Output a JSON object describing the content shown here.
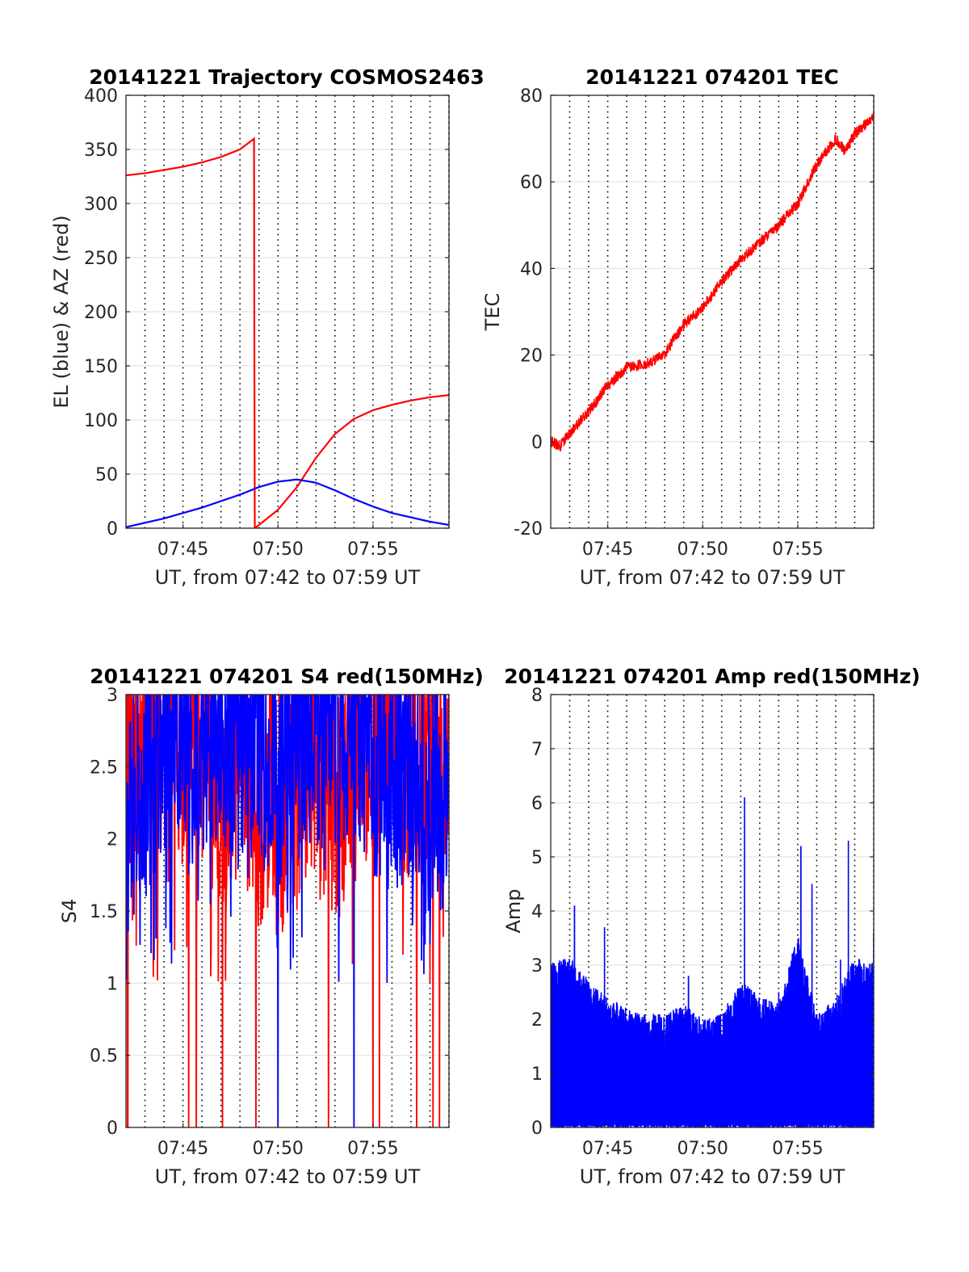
{
  "chart_data": [
    {
      "id": "trajectory",
      "type": "line",
      "title": "20141221 Trajectory COSMOS2463",
      "xlabel": "UT, from 07:42 to 07:59 UT",
      "ylabel": "EL (blue) & AZ (red)",
      "xlim": [
        "07:42",
        "07:59"
      ],
      "xticks": [
        "07:45",
        "07:50",
        "07:55"
      ],
      "ylim": [
        0,
        400
      ],
      "yticks": [
        "0",
        "50",
        "100",
        "150",
        "200",
        "250",
        "300",
        "350",
        "400"
      ],
      "grid": true,
      "series": [
        {
          "color": "#ff0000",
          "points": [
            [
              "07:42:00",
              326
            ],
            [
              "07:43:00",
              328
            ],
            [
              "07:44:00",
              331
            ],
            [
              "07:45:00",
              334
            ],
            [
              "07:46:00",
              338
            ],
            [
              "07:47:00",
              343
            ],
            [
              "07:48:00",
              350
            ],
            [
              "07:48:45",
              360
            ],
            [
              "07:48:46",
              0
            ],
            [
              "07:49:00",
              3
            ],
            [
              "07:50:00",
              17
            ],
            [
              "07:51:00",
              38
            ],
            [
              "07:52:00",
              65
            ],
            [
              "07:53:00",
              87
            ],
            [
              "07:54:00",
              101
            ],
            [
              "07:55:00",
              109
            ],
            [
              "07:56:00",
              114
            ],
            [
              "07:57:00",
              118
            ],
            [
              "07:58:00",
              121
            ],
            [
              "07:59:00",
              123
            ]
          ]
        },
        {
          "color": "#0000ff",
          "points": [
            [
              "07:42:00",
              1
            ],
            [
              "07:43:00",
              5
            ],
            [
              "07:44:00",
              9
            ],
            [
              "07:45:00",
              14
            ],
            [
              "07:46:00",
              19
            ],
            [
              "07:47:00",
              25
            ],
            [
              "07:48:00",
              31
            ],
            [
              "07:49:00",
              38
            ],
            [
              "07:50:00",
              43
            ],
            [
              "07:51:00",
              45
            ],
            [
              "07:52:00",
              42
            ],
            [
              "07:53:00",
              35
            ],
            [
              "07:54:00",
              27
            ],
            [
              "07:55:00",
              20
            ],
            [
              "07:56:00",
              14
            ],
            [
              "07:57:00",
              10
            ],
            [
              "07:58:00",
              6
            ],
            [
              "07:59:00",
              3
            ]
          ]
        }
      ]
    },
    {
      "id": "tec",
      "type": "line",
      "title": "20141221 074201 TEC",
      "xlabel": "UT, from 07:42 to 07:59 UT",
      "ylabel": "TEC",
      "xlim": [
        "07:42",
        "07:59"
      ],
      "xticks": [
        "07:45",
        "07:50",
        "07:55"
      ],
      "ylim": [
        -20,
        80
      ],
      "yticks": [
        "-20",
        "0",
        "20",
        "40",
        "60",
        "80"
      ],
      "grid": true,
      "series": [
        {
          "color": "#ff0000",
          "points": [
            [
              "07:42:00",
              0
            ],
            [
              "07:42:30",
              -1
            ],
            [
              "07:43:00",
              2
            ],
            [
              "07:44:00",
              7
            ],
            [
              "07:45:00",
              13
            ],
            [
              "07:46:00",
              17
            ],
            [
              "07:47:00",
              18
            ],
            [
              "07:48:00",
              20
            ],
            [
              "07:48:30",
              24
            ],
            [
              "07:49:00",
              27
            ],
            [
              "07:50:00",
              31
            ],
            [
              "07:51:00",
              37
            ],
            [
              "07:52:00",
              42
            ],
            [
              "07:53:00",
              46
            ],
            [
              "07:54:00",
              50
            ],
            [
              "07:55:00",
              55
            ],
            [
              "07:56:00",
              64
            ],
            [
              "07:57:00",
              70
            ],
            [
              "07:57:30",
              67
            ],
            [
              "07:58:00",
              71
            ],
            [
              "07:59:00",
              75
            ]
          ]
        }
      ]
    },
    {
      "id": "s4",
      "type": "line",
      "title": "20141221 074201 S4 red(150MHz)",
      "xlabel": "UT, from 07:42 to 07:59 UT",
      "ylabel": "S4",
      "xlim": [
        "07:42",
        "07:59"
      ],
      "xticks": [
        "07:45",
        "07:50",
        "07:55"
      ],
      "ylim": [
        0,
        3
      ],
      "yticks": [
        "0",
        "0.5",
        "1",
        "1.5",
        "2",
        "2.5",
        "3"
      ],
      "grid": true,
      "series": [
        {
          "color": "#ff0000",
          "points": [
            [
              "07:42:00",
              2.5
            ],
            [
              "07:43:00",
              2.3
            ],
            [
              "07:44:00",
              2.6
            ],
            [
              "07:45:00",
              2.2
            ],
            [
              "07:46:00",
              2.5
            ],
            [
              "07:47:00",
              2.1
            ],
            [
              "07:48:00",
              2.4
            ],
            [
              "07:49:00",
              2.0
            ],
            [
              "07:50:00",
              1.8
            ],
            [
              "07:51:00",
              2.2
            ],
            [
              "07:52:00",
              2.4
            ],
            [
              "07:53:00",
              2.0
            ],
            [
              "07:54:00",
              2.3
            ],
            [
              "07:55:00",
              2.5
            ],
            [
              "07:56:00",
              2.6
            ],
            [
              "07:57:00",
              2.3
            ],
            [
              "07:58:00",
              2.5
            ],
            [
              "07:59:00",
              2.2
            ]
          ],
          "dropouts": [
            "07:42:05",
            "07:42:06",
            "07:45:18",
            "07:45:42",
            "07:47:05",
            "07:48:50",
            "07:52:40",
            "07:55:00",
            "07:55:20",
            "07:57:18",
            "07:58:10",
            "07:58:30"
          ]
        },
        {
          "color": "#0000ff",
          "points": [
            [
              "07:42:00",
              1.8
            ],
            [
              "07:43:00",
              2.2
            ],
            [
              "07:44:00",
              2.5
            ],
            [
              "07:45:00",
              2.4
            ],
            [
              "07:46:00",
              2.3
            ],
            [
              "07:47:00",
              2.6
            ],
            [
              "07:48:00",
              2.4
            ],
            [
              "07:49:00",
              2.5
            ],
            [
              "07:50:00",
              2.2
            ],
            [
              "07:51:00",
              2.4
            ],
            [
              "07:52:00",
              2.6
            ],
            [
              "07:53:00",
              2.5
            ],
            [
              "07:54:00",
              2.7
            ],
            [
              "07:55:00",
              2.3
            ],
            [
              "07:56:00",
              2.4
            ],
            [
              "07:57:00",
              2.0
            ],
            [
              "07:58:00",
              1.8
            ],
            [
              "07:59:00",
              2.2
            ]
          ],
          "dropouts": [
            "07:50:00",
            "07:54:00"
          ]
        }
      ]
    },
    {
      "id": "amp",
      "type": "line",
      "title": "20141221 074201 Amp red(150MHz)",
      "xlabel": "UT, from 07:42 to 07:59 UT",
      "ylabel": "Amp",
      "xlim": [
        "07:42",
        "07:59"
      ],
      "xticks": [
        "07:45",
        "07:50",
        "07:55"
      ],
      "ylim": [
        0,
        8
      ],
      "yticks": [
        "0",
        "1",
        "2",
        "3",
        "4",
        "5",
        "6",
        "7",
        "8"
      ],
      "grid": true,
      "series": [
        {
          "color": "#0000ff",
          "points": [
            [
              "07:42:00",
              1.4
            ],
            [
              "07:42:30",
              1.9
            ],
            [
              "07:43:00",
              2.5
            ],
            [
              "07:43:15",
              4.1
            ],
            [
              "07:44:00",
              2.2
            ],
            [
              "07:44:50",
              3.7
            ],
            [
              "07:45:30",
              1.8
            ],
            [
              "07:46:30",
              1.7
            ],
            [
              "07:47:30",
              1.6
            ],
            [
              "07:48:40",
              1.9
            ],
            [
              "07:49:15",
              2.8
            ],
            [
              "07:50:00",
              1.5
            ],
            [
              "07:51:00",
              1.7
            ],
            [
              "07:52:00",
              1.8
            ],
            [
              "07:52:12",
              6.1
            ],
            [
              "07:53:00",
              2.2
            ],
            [
              "07:54:00",
              2.5
            ],
            [
              "07:54:40",
              1.9
            ],
            [
              "07:55:10",
              5.2
            ],
            [
              "07:55:45",
              4.5
            ],
            [
              "07:56:30",
              2.0
            ],
            [
              "07:57:15",
              3.1
            ],
            [
              "07:57:40",
              5.3
            ],
            [
              "07:58:20",
              2.6
            ],
            [
              "07:59:00",
              3.6
            ]
          ],
          "envelope": [
            [
              "07:42:00",
              2.9
            ],
            [
              "07:43:00",
              3.0
            ],
            [
              "07:44:00",
              2.6
            ],
            [
              "07:45:00",
              2.3
            ],
            [
              "07:46:00",
              2.1
            ],
            [
              "07:47:00",
              2.0
            ],
            [
              "07:48:00",
              2.0
            ],
            [
              "07:49:00",
              2.2
            ],
            [
              "07:50:00",
              1.9
            ],
            [
              "07:51:00",
              2.0
            ],
            [
              "07:52:00",
              2.6
            ],
            [
              "07:53:00",
              2.3
            ],
            [
              "07:54:00",
              2.2
            ],
            [
              "07:55:00",
              3.4
            ],
            [
              "07:56:00",
              2.0
            ],
            [
              "07:57:00",
              2.3
            ],
            [
              "07:58:00",
              3.0
            ],
            [
              "07:59:00",
              2.9
            ]
          ]
        }
      ]
    }
  ]
}
